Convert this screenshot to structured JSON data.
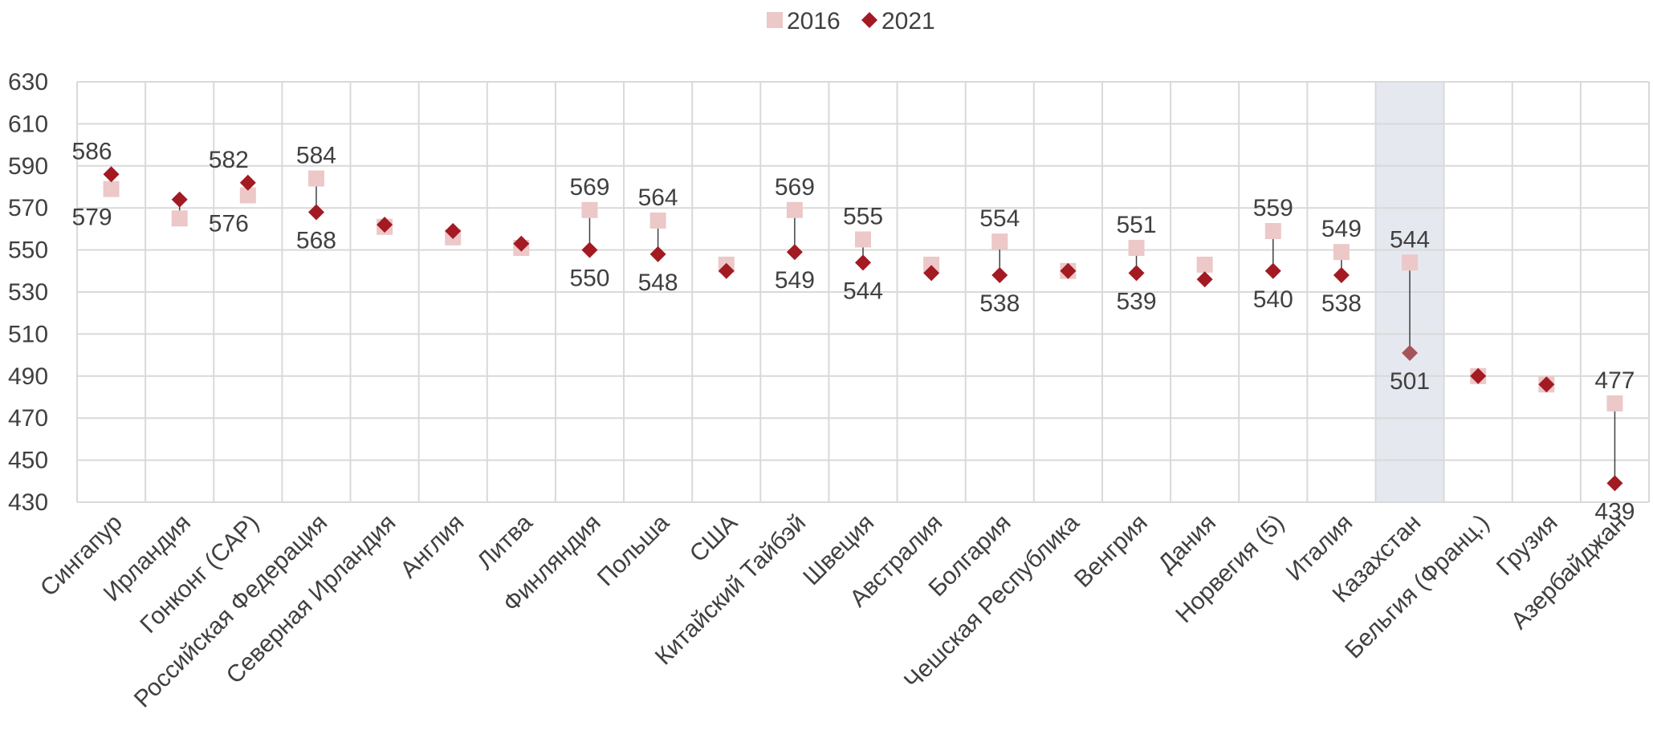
{
  "chart_data": {
    "type": "scatter",
    "categories": [
      "Сингапур",
      "Ирландия",
      "Гонконг (САР)",
      "Российская Федерация",
      "Северная Ирландия",
      "Англия",
      "Литва",
      "Финляндия",
      "Польша",
      "США",
      "Китайский Тайбэй",
      "Швеция",
      "Австралия",
      "Болгария",
      "Чешская Республика",
      "Венгрия",
      "Дания",
      "Норвегия (5)",
      "Италия",
      "Казахстан",
      "Бельгия (Франц.)",
      "Грузия",
      "Азербайджан"
    ],
    "series": [
      {
        "name": "2016",
        "color": "#ecc8c8",
        "marker": "square",
        "values": [
          579,
          565,
          576,
          584,
          561,
          556,
          551,
          569,
          564,
          543,
          569,
          555,
          543,
          554,
          540,
          551,
          543,
          559,
          549,
          544,
          490,
          486,
          477
        ]
      },
      {
        "name": "2021",
        "color": "#a31a23",
        "marker": "diamond",
        "values": [
          586,
          574,
          582,
          568,
          562,
          559,
          553,
          550,
          548,
          540,
          549,
          544,
          539,
          538,
          540,
          539,
          536,
          540,
          538,
          501,
          490,
          486,
          439
        ]
      }
    ],
    "data_labels": [
      {
        "category": "Сингапур",
        "series": "2021",
        "text": "586"
      },
      {
        "category": "Сингапур",
        "series": "2016",
        "text": "579"
      },
      {
        "category": "Гонконг (САР)",
        "series": "2021",
        "text": "582"
      },
      {
        "category": "Гонконг (САР)",
        "series": "2016",
        "text": "576"
      },
      {
        "category": "Российская Федерация",
        "series": "2016",
        "text": "584"
      },
      {
        "category": "Российская Федерация",
        "series": "2021",
        "text": "568"
      },
      {
        "category": "Финляндия",
        "series": "2016",
        "text": "569"
      },
      {
        "category": "Финляндия",
        "series": "2021",
        "text": "550"
      },
      {
        "category": "Польша",
        "series": "2016",
        "text": "564"
      },
      {
        "category": "Польша",
        "series": "2021",
        "text": "548"
      },
      {
        "category": "Китайский Тайбэй",
        "series": "2016",
        "text": "569"
      },
      {
        "category": "Китайский Тайбэй",
        "series": "2021",
        "text": "549"
      },
      {
        "category": "Швеция",
        "series": "2016",
        "text": "555"
      },
      {
        "category": "Швеция",
        "series": "2021",
        "text": "544"
      },
      {
        "category": "Болгария",
        "series": "2016",
        "text": "554"
      },
      {
        "category": "Болгария",
        "series": "2021",
        "text": "538"
      },
      {
        "category": "Венгрия",
        "series": "2016",
        "text": "551"
      },
      {
        "category": "Венгрия",
        "series": "2021",
        "text": "539"
      },
      {
        "category": "Норвегия (5)",
        "series": "2016",
        "text": "559"
      },
      {
        "category": "Норвегия (5)",
        "series": "2021",
        "text": "540"
      },
      {
        "category": "Италия",
        "series": "2016",
        "text": "549"
      },
      {
        "category": "Италия",
        "series": "2021",
        "text": "538"
      },
      {
        "category": "Казахстан",
        "series": "2016",
        "text": "544"
      },
      {
        "category": "Казахстан",
        "series": "2021",
        "text": "501"
      },
      {
        "category": "Азербайджан",
        "series": "2016",
        "text": "477"
      },
      {
        "category": "Азербайджан",
        "series": "2021",
        "text": "439"
      }
    ],
    "connectors": [
      "Сингапур",
      "Ирландия",
      "Гонконг (САР)",
      "Российская Федерация",
      "Финляндия",
      "Польша",
      "Китайский Тайбэй",
      "Швеция",
      "Болгария",
      "Венгрия",
      "Норвегия (5)",
      "Италия",
      "Казахстан",
      "Азербайджан"
    ],
    "highlight_category": "Казахстан",
    "highlight_color": "#e6e8f0",
    "ylim": [
      430,
      630
    ],
    "yticks": [
      "430",
      "450",
      "470",
      "490",
      "510",
      "530",
      "550",
      "570",
      "590",
      "610",
      "630"
    ],
    "grid": true,
    "legend_position": "top",
    "title": "",
    "xlabel": "",
    "ylabel": ""
  }
}
